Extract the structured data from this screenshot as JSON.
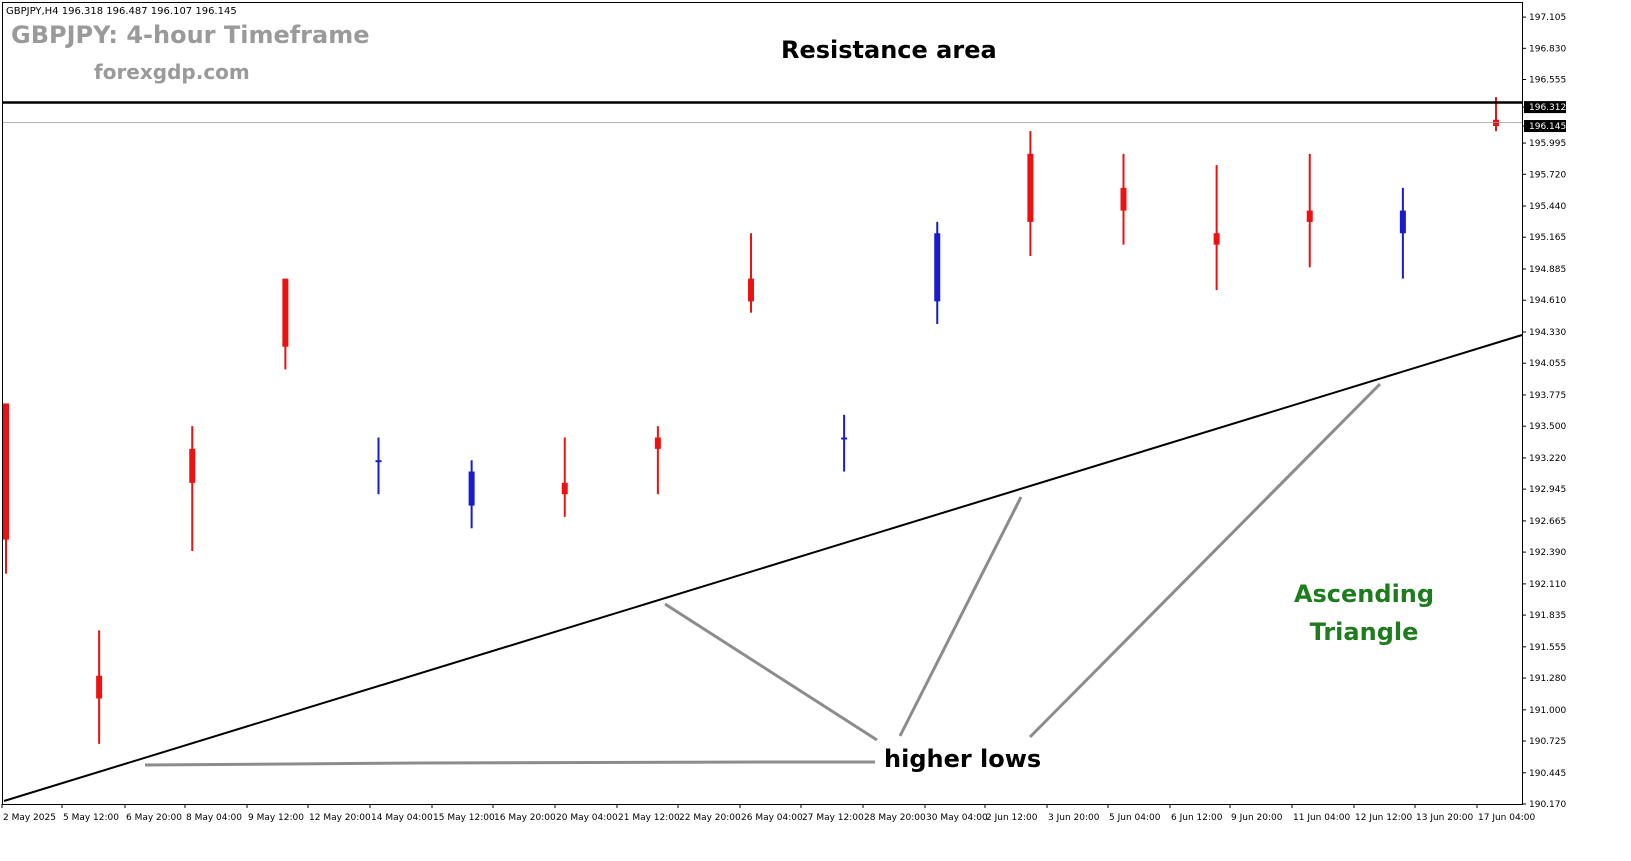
{
  "chart_info": {
    "header": "GBPJPY,H4  196.318 196.487 196.107 196.145",
    "title": "GBPJPY: 4-hour Timeframe",
    "website": "forexgdp.com"
  },
  "annotations": {
    "resistance_label": "Resistance area",
    "pattern_line1": "Ascending",
    "pattern_line2": "Triangle",
    "higher_lows_label": "higher lows"
  },
  "colors": {
    "bull_candle": "#1a1ad0",
    "bear_candle": "#ee1111",
    "pattern_text": "#1e7b1e",
    "title_text": "#9a9a9a",
    "resistance_line": "#000000",
    "pointer_line": "#8c8c8c"
  },
  "chart_data": {
    "type": "candlestick",
    "symbol": "GBPJPY",
    "timeframe": "H4",
    "ylim": [
      190.17,
      197.15
    ],
    "y_ticks": [
      "197.105",
      "196.830",
      "196.555",
      "196.312",
      "196.145",
      "195.995",
      "195.720",
      "195.440",
      "195.165",
      "194.885",
      "194.610",
      "194.330",
      "194.055",
      "193.775",
      "193.500",
      "193.220",
      "192.945",
      "192.665",
      "192.390",
      "192.110",
      "191.835",
      "191.555",
      "191.280",
      "191.000",
      "190.725",
      "190.445",
      "190.170"
    ],
    "x_ticks": [
      "2 May 2025",
      "5 May 12:00",
      "6 May 20:00",
      "8 May 04:00",
      "9 May 12:00",
      "12 May 20:00",
      "14 May 04:00",
      "15 May 12:00",
      "16 May 20:00",
      "20 May 04:00",
      "21 May 12:00",
      "22 May 20:00",
      "26 May 04:00",
      "27 May 12:00",
      "28 May 20:00",
      "30 May 04:00",
      "2 Jun 12:00",
      "3 Jun 20:00",
      "5 Jun 04:00",
      "6 Jun 12:00",
      "9 Jun 20:00",
      "11 Jun 04:00",
      "12 Jun 12:00",
      "13 Jun 20:00",
      "17 Jun 04:00"
    ],
    "price_tags": [
      {
        "label": "196.312",
        "value": 196.312,
        "style": "dark"
      },
      {
        "label": "196.145",
        "value": 196.145,
        "style": "dark"
      }
    ],
    "resistance_level": 196.312,
    "current_price_level": 196.145,
    "trendline": {
      "start": {
        "candle": 0,
        "price": 190.2
      },
      "end": {
        "candle": 257,
        "price": 194.3
      }
    },
    "higher_lows": [
      {
        "candle": 21,
        "price": 190.5
      },
      {
        "candle": 109,
        "price": 191.9
      },
      {
        "candle": 170,
        "price": 192.95
      },
      {
        "candle": 229,
        "price": 193.9
      }
    ],
    "ohlc_sampled_at": "every 16 candles",
    "ohlc": [
      [
        193.7,
        193.7,
        192.2,
        192.5
      ],
      [
        191.3,
        191.7,
        190.7,
        191.1
      ],
      [
        193.3,
        193.5,
        192.4,
        193.0
      ],
      [
        194.8,
        194.8,
        194.0,
        194.2
      ],
      [
        193.2,
        193.4,
        192.9,
        193.2
      ],
      [
        192.8,
        193.2,
        192.6,
        193.1
      ],
      [
        193.0,
        193.4,
        192.7,
        192.9
      ],
      [
        193.4,
        193.5,
        192.9,
        193.3
      ],
      [
        194.8,
        195.2,
        194.5,
        194.6
      ],
      [
        193.4,
        193.6,
        193.1,
        193.4
      ],
      [
        194.6,
        195.3,
        194.4,
        195.2
      ],
      [
        195.9,
        196.1,
        195.0,
        195.3
      ],
      [
        195.6,
        195.9,
        195.1,
        195.4
      ],
      [
        195.2,
        195.8,
        194.7,
        195.1
      ],
      [
        195.4,
        195.9,
        194.9,
        195.3
      ],
      [
        195.2,
        195.6,
        194.8,
        195.4
      ],
      [
        196.2,
        196.4,
        196.1,
        196.145
      ]
    ]
  }
}
